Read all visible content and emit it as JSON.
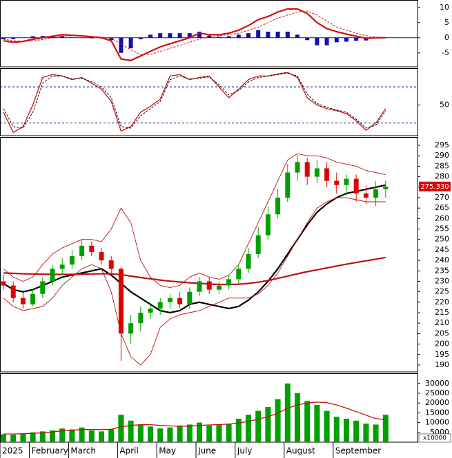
{
  "chart_data": [
    {
      "type": "line",
      "ylim": [
        -9.6,
        12
      ],
      "yticks": [
        -5,
        0,
        5,
        10
      ],
      "series": [
        {
          "style": "bar",
          "color": "#1010b0",
          "values": [
            -0.5,
            -0.5,
            0,
            0.5,
            0.6,
            0.5,
            0.5,
            0.1,
            -0.1,
            -0.2,
            -0.2,
            -0.8,
            -5,
            -3.5,
            -0.5,
            1,
            1.5,
            1.5,
            1.5,
            1.5,
            2,
            0.7,
            0.3,
            0.5,
            1,
            1.5,
            2.5,
            2,
            2,
            2,
            1,
            -0.8,
            -2.5,
            -2.5,
            -1.5,
            -1.3,
            -1,
            -0.9,
            -0.2,
            -0.1
          ]
        },
        {
          "style": "thick",
          "color": "#d01010",
          "values": [
            -1,
            -1.5,
            -1.2,
            -0.5,
            0,
            0.5,
            1,
            0.8,
            0.6,
            0.3,
            0,
            -1,
            -7,
            -7.5,
            -6,
            -4.5,
            -3,
            -2,
            -1,
            0,
            1.5,
            1,
            1,
            1.5,
            2.5,
            4,
            6,
            7,
            8.5,
            9.5,
            9.5,
            8,
            5,
            3,
            2,
            1.2,
            0.5,
            -0.2,
            0,
            0
          ]
        },
        {
          "style": "dashed",
          "color": "#d01010",
          "values": [
            -0.5,
            -1,
            -1.2,
            -1,
            -0.6,
            0,
            0.5,
            0.7,
            0.7,
            0.5,
            0.2,
            -0.2,
            -2,
            -4,
            -5.5,
            -5.5,
            -4.5,
            -3.5,
            -2.5,
            -1.5,
            -0.5,
            0.3,
            0.7,
            1,
            1.5,
            2.5,
            3.5,
            5,
            6.5,
            7.5,
            8.5,
            8.8,
            7.5,
            5.5,
            3.5,
            2.5,
            1.5,
            0.7,
            0.2,
            0.1
          ]
        }
      ]
    },
    {
      "type": "line",
      "ylim": [
        7.5,
        99
      ],
      "yticks": [
        50
      ],
      "ref_lines": [
        75,
        25
      ],
      "series": [
        {
          "style": "solid",
          "color": "#d01010",
          "values": [
            40,
            12,
            20,
            50,
            88,
            92,
            90,
            85,
            88,
            80,
            72,
            55,
            14,
            20,
            40,
            48,
            58,
            90,
            92,
            85,
            88,
            90,
            75,
            60,
            72,
            85,
            90,
            90,
            93,
            95,
            88,
            60,
            50,
            45,
            42,
            38,
            28,
            15,
            25,
            45
          ]
        },
        {
          "style": "dashed",
          "color": "#000000",
          "values": [
            45,
            20,
            18,
            40,
            80,
            90,
            90,
            86,
            87,
            82,
            75,
            60,
            20,
            18,
            35,
            45,
            55,
            85,
            90,
            86,
            87,
            89,
            78,
            64,
            70,
            82,
            88,
            90,
            92,
            94,
            90,
            65,
            52,
            47,
            43,
            40,
            30,
            18,
            22,
            42
          ]
        }
      ]
    },
    {
      "type": "candlestick",
      "ylim": [
        186.7,
        298.3
      ],
      "yticks": [
        190,
        195,
        200,
        205,
        210,
        215,
        220,
        225,
        230,
        235,
        240,
        245,
        250,
        255,
        260,
        265,
        270,
        275,
        280,
        285,
        290,
        295
      ],
      "up_color": "#00a000",
      "down_color": "#e00000",
      "ohlc": {
        "open": [
          230,
          228,
          222,
          219,
          224,
          230,
          236,
          238,
          242,
          247,
          244,
          240,
          236,
          205,
          210,
          215,
          217,
          220,
          222,
          219,
          225,
          230,
          226,
          228,
          231,
          236,
          243,
          252,
          262,
          270,
          282,
          287,
          280,
          284,
          278,
          276,
          279,
          272,
          270,
          274
        ],
        "high": [
          233,
          230,
          225,
          226,
          232,
          238,
          241,
          245,
          250,
          249,
          246,
          242,
          237,
          214,
          218,
          220,
          222,
          224,
          225,
          227,
          232,
          232,
          230,
          233,
          238,
          246,
          256,
          266,
          274,
          286,
          290,
          289,
          288,
          287,
          282,
          281,
          281,
          276,
          278,
          278
        ],
        "low": [
          226,
          220,
          217,
          218,
          222,
          228,
          233,
          236,
          240,
          242,
          238,
          234,
          192,
          200,
          206,
          212,
          214,
          217,
          217,
          217,
          223,
          224,
          224,
          226,
          229,
          234,
          241,
          250,
          260,
          268,
          278,
          276,
          277,
          275,
          272,
          271,
          268,
          267,
          266,
          270
        ],
        "close": [
          228,
          222,
          219,
          224,
          230,
          236,
          238,
          242,
          247,
          244,
          240,
          236,
          205,
          210,
          215,
          217,
          220,
          222,
          219,
          225,
          230,
          226,
          228,
          231,
          236,
          243,
          252,
          262,
          270,
          282,
          287,
          280,
          284,
          278,
          276,
          279,
          272,
          270,
          274,
          275.33
        ]
      },
      "last_label": {
        "value": 275.33,
        "label": "275.330"
      },
      "last_color": "#e00000",
      "lines": [
        {
          "style": "thick",
          "color": "#000000",
          "values": [
            229,
            226,
            225,
            226,
            228,
            230,
            232,
            233,
            234,
            235,
            236,
            233,
            229,
            225,
            222,
            219,
            216,
            215,
            216,
            219,
            220,
            219,
            218,
            217,
            218,
            221,
            225,
            230,
            236,
            243,
            250,
            257,
            263,
            267,
            270,
            272,
            273,
            274,
            275,
            276
          ]
        },
        {
          "style": "thick",
          "color": "#c01010",
          "values": [
            234,
            233.8,
            233.6,
            233.5,
            233.4,
            233.3,
            233.3,
            233.3,
            233.4,
            233.5,
            233.6,
            233.6,
            233.2,
            232.5,
            231.8,
            231.2,
            230.6,
            230.1,
            229.7,
            229.3,
            229,
            228.7,
            228.5,
            228.5,
            228.6,
            229,
            229.6,
            230.4,
            231.4,
            232.5,
            233.6,
            234.6,
            235.5,
            236.4,
            237.3,
            238.2,
            239,
            239.8,
            240.6,
            241.4
          ]
        },
        {
          "style": "thin",
          "color": "#c01010",
          "values": [
            236,
            232,
            230,
            232,
            238,
            243,
            246,
            248,
            250,
            250,
            249,
            255,
            265,
            258,
            240,
            232,
            228,
            227,
            228,
            232,
            234,
            232,
            231,
            233,
            238,
            248,
            258,
            268,
            278,
            288,
            291,
            290,
            290,
            289,
            287,
            286,
            285,
            283,
            282,
            281
          ]
        },
        {
          "style": "thin",
          "color": "#c01010",
          "values": [
            222,
            218,
            216,
            217,
            218,
            222,
            228,
            232,
            236,
            238,
            236,
            225,
            205,
            194,
            190,
            195,
            208,
            212,
            214,
            215,
            216,
            218,
            220,
            222,
            222,
            222,
            224,
            228,
            234,
            242,
            250,
            258,
            265,
            268,
            270,
            270,
            269,
            268,
            268,
            268
          ]
        }
      ]
    },
    {
      "type": "bar",
      "ylim": [
        0,
        34500
      ],
      "yticks": [
        5000,
        10000,
        15000,
        20000,
        25000,
        30000
      ],
      "unit_label": "x10000",
      "color": "#00a000",
      "categories": [
        "2025",
        null,
        null,
        "February",
        null,
        null,
        null,
        "March",
        null,
        null,
        null,
        null,
        "April",
        null,
        null,
        null,
        "May",
        null,
        null,
        null,
        "June",
        null,
        null,
        null,
        "July",
        null,
        null,
        null,
        null,
        "August",
        null,
        null,
        null,
        null,
        "September",
        null,
        null,
        null,
        null,
        null
      ],
      "values": [
        4000,
        3800,
        4500,
        5000,
        5500,
        6000,
        7000,
        6500,
        7500,
        6000,
        5500,
        6500,
        14000,
        11000,
        9000,
        8000,
        7000,
        7500,
        8500,
        9000,
        10000,
        8500,
        9000,
        9500,
        12000,
        14000,
        16000,
        18000,
        22000,
        30000,
        25000,
        21000,
        19000,
        16000,
        13000,
        12000,
        11000,
        9500,
        9000,
        14000
      ],
      "lines": [
        {
          "style": "solid",
          "color": "#c01010",
          "values": [
            4200,
            4200,
            4300,
            4500,
            4800,
            5200,
            5800,
            6100,
            6400,
            6500,
            6400,
            6600,
            7800,
            8600,
            8900,
            8900,
            8600,
            8300,
            8100,
            8200,
            8600,
            8800,
            9000,
            9200,
            9800,
            10600,
            11800,
            13000,
            14800,
            17400,
            19000,
            20000,
            20500,
            20200,
            19000,
            17400,
            15600,
            13800,
            12000,
            11500
          ]
        }
      ]
    }
  ]
}
